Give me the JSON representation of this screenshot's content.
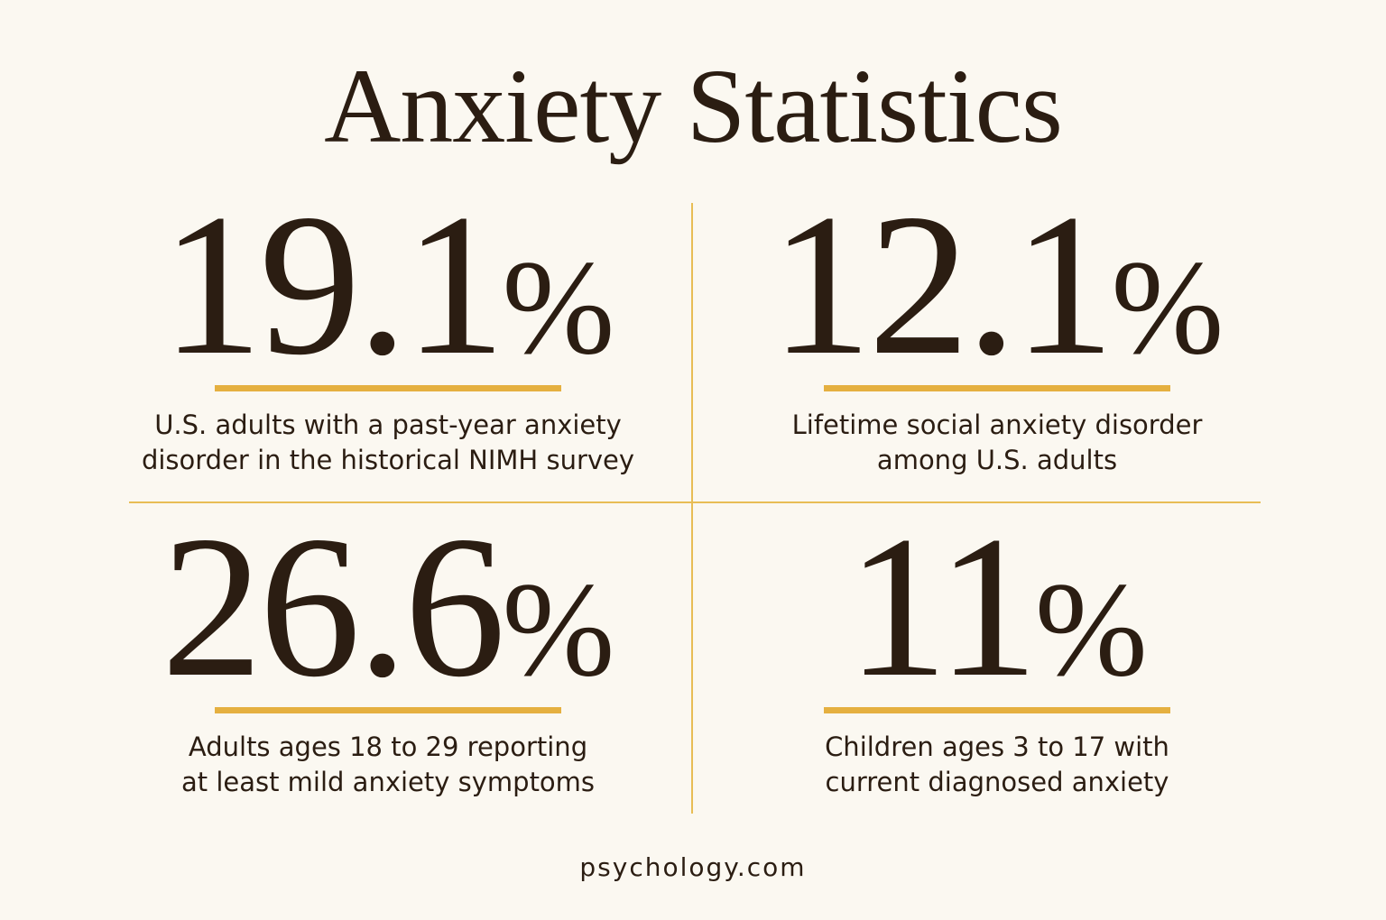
{
  "header": {
    "title": "Anxiety Statistics"
  },
  "stats": [
    {
      "number": "19.1",
      "unit": "%",
      "description": [
        "U.S. adults with a past-year anxiety",
        "disorder in the historical NIMH survey"
      ]
    },
    {
      "number": "12.1",
      "unit": "%",
      "description": [
        "Lifetime social anxiety disorder",
        "among U.S. adults"
      ]
    },
    {
      "number": "26.6",
      "unit": "%",
      "description": [
        "Adults ages 18 to 29 reporting",
        "at least mild anxiety symptoms"
      ]
    },
    {
      "number": "11",
      "unit": "%",
      "description": [
        "Children ages 3 to 17 with",
        "current diagnosed anxiety"
      ]
    }
  ],
  "footer": {
    "text": "psychology.com"
  }
}
